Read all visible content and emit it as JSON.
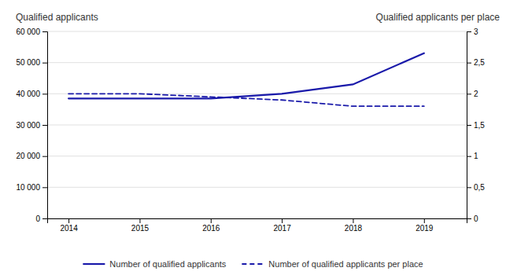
{
  "chart_data": {
    "type": "line",
    "x": [
      2014,
      2015,
      2016,
      2017,
      2018,
      2019
    ],
    "xlim": [
      2013.7,
      2019.6
    ],
    "xticks": [
      2014,
      2015,
      2016,
      2017,
      2018,
      2019
    ],
    "ylim": [
      0,
      60000
    ],
    "yticks": [
      0,
      {
        "value": 10000,
        "label": "10 000"
      },
      {
        "value": 20000,
        "label": "20 000"
      },
      {
        "value": 30000,
        "label": "30 000"
      },
      {
        "value": 40000,
        "label": "40 000"
      },
      {
        "value": 50000,
        "label": "50 000"
      },
      {
        "value": 60000,
        "label": "60 000"
      }
    ],
    "y2lim": [
      0,
      3
    ],
    "y2ticks": [
      0,
      {
        "value": 0.5,
        "label": "0,5"
      },
      1,
      {
        "value": 1.5,
        "label": "1,5"
      },
      2,
      {
        "value": 2.5,
        "label": "2,5"
      },
      3
    ],
    "ylabel": "Qualified applicants",
    "y2label": "Qualified applicants per place",
    "grid": true,
    "legend": "bottom",
    "series": [
      {
        "name": "Number of qualified applicants",
        "color": "#1a1aaa",
        "line_style": "solid",
        "values": [
          38500,
          38500,
          38500,
          40000,
          43000,
          53000
        ]
      },
      {
        "name": "Number of qualified applicants per place",
        "color": "#1a1aaa",
        "line_style": "dashed",
        "axis": "y2",
        "values": [
          2.0,
          2.0,
          1.95,
          1.9,
          1.8,
          1.8
        ]
      }
    ]
  }
}
